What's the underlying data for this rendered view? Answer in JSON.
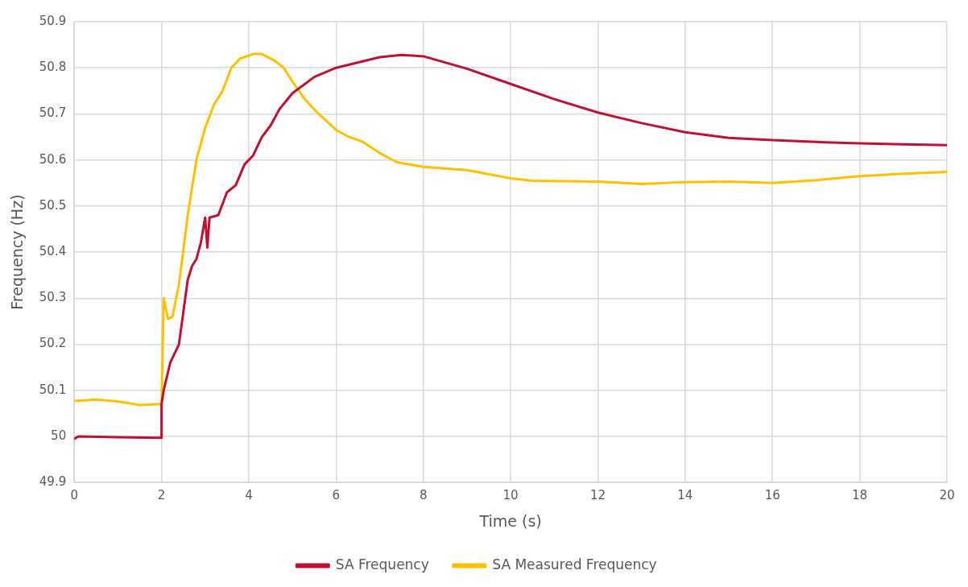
{
  "chart_data": {
    "type": "line",
    "xlabel": "Time (s)",
    "ylabel": "Frequency (Hz)",
    "xlim": [
      0,
      20
    ],
    "xticks": [
      0,
      2,
      4,
      6,
      8,
      10,
      12,
      14,
      16,
      18,
      20
    ],
    "ylim": [
      49.9,
      50.9
    ],
    "yticks": [
      49.9,
      50,
      50.1,
      50.2,
      50.3,
      50.4,
      50.5,
      50.6,
      50.7,
      50.8,
      50.9
    ],
    "grid": true,
    "legend": "bottom",
    "marker": "none",
    "line_style": "solid",
    "series": [
      {
        "name": "SA Frequency",
        "color": "#c0122f",
        "x": [
          0,
          0.1,
          1,
          1.99,
          2.0,
          2.05,
          2.2,
          2.4,
          2.6,
          2.7,
          2.8,
          2.9,
          3.0,
          3.05,
          3.1,
          3.3,
          3.5,
          3.7,
          3.9,
          4.1,
          4.3,
          4.5,
          4.7,
          5,
          5.5,
          6,
          7,
          7.5,
          8,
          9,
          10,
          11,
          12,
          13,
          14,
          15,
          16,
          17,
          18,
          19,
          20
        ],
        "values": [
          49.995,
          50.0,
          49.998,
          49.997,
          50.07,
          50.1,
          50.16,
          50.2,
          50.34,
          50.37,
          50.385,
          50.42,
          50.475,
          50.41,
          50.475,
          50.48,
          50.53,
          50.545,
          50.59,
          50.61,
          50.65,
          50.675,
          50.71,
          50.745,
          50.78,
          50.8,
          50.823,
          50.828,
          50.825,
          50.798,
          50.765,
          50.732,
          50.703,
          50.68,
          50.66,
          50.648,
          50.643,
          50.639,
          50.636,
          50.634,
          50.632
        ]
      },
      {
        "name": "SA Measured Frequency",
        "color": "#ffc000",
        "x": [
          0,
          0.5,
          1,
          1.5,
          1.9,
          2.0,
          2.05,
          2.15,
          2.25,
          2.4,
          2.6,
          2.8,
          3.0,
          3.2,
          3.4,
          3.6,
          3.8,
          4.1,
          4.3,
          4.6,
          4.8,
          5.0,
          5.3,
          5.6,
          6,
          6.3,
          6.6,
          7,
          7.4,
          8,
          9,
          10,
          10.5,
          12,
          13,
          14,
          15,
          16,
          17,
          18,
          19,
          20
        ],
        "values": [
          50.077,
          50.08,
          50.076,
          50.068,
          50.07,
          50.07,
          50.3,
          50.255,
          50.26,
          50.33,
          50.48,
          50.6,
          50.67,
          50.72,
          50.75,
          50.8,
          50.82,
          50.83,
          50.83,
          50.815,
          50.8,
          50.77,
          50.73,
          50.7,
          50.665,
          50.65,
          50.64,
          50.615,
          50.595,
          50.585,
          50.578,
          50.56,
          50.555,
          50.553,
          50.548,
          50.552,
          50.553,
          50.55,
          50.556,
          50.565,
          50.57,
          50.574
        ]
      }
    ]
  }
}
